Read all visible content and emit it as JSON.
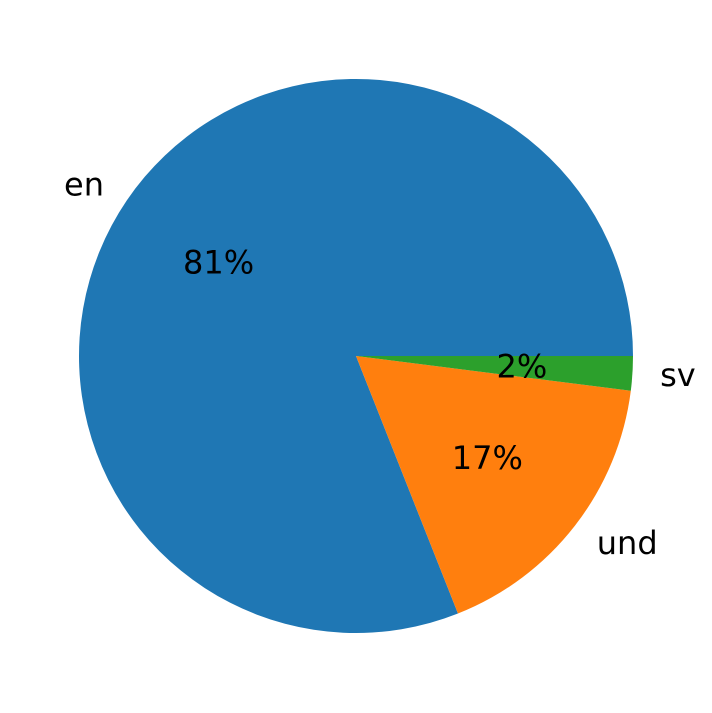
{
  "chart_data": {
    "type": "pie",
    "title": "",
    "slices": [
      {
        "label": "en",
        "value": 81,
        "pct_text": "81%",
        "color": "#1f77b4"
      },
      {
        "label": "und",
        "value": 17,
        "pct_text": "17%",
        "color": "#ff7f0e"
      },
      {
        "label": "sv",
        "value": 2,
        "pct_text": "2%",
        "color": "#2ca02c"
      }
    ],
    "start_angle_deg": 0,
    "direction": "counterclockwise"
  }
}
